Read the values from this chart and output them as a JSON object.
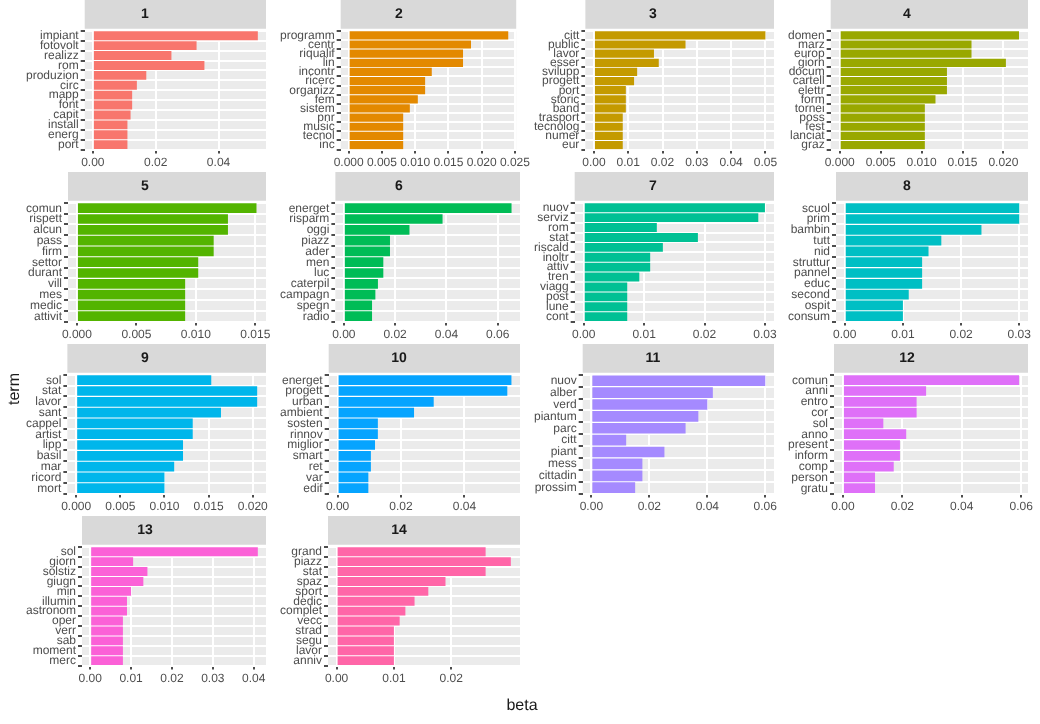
{
  "chart_data": [
    {
      "type": "bar",
      "orientation": "horizontal",
      "title": "1",
      "grid": true,
      "color": "#f8766d",
      "categories": [
        "impiant",
        "fotovolt",
        "realizz",
        "rom",
        "produzion",
        "circ",
        "mapp",
        "font",
        "capit",
        "install",
        "energ",
        "port"
      ],
      "values": [
        0.0525,
        0.033,
        0.025,
        0.0355,
        0.017,
        0.014,
        0.0125,
        0.0125,
        0.012,
        0.011,
        0.011,
        0.011
      ],
      "xlim": [
        -0.0026,
        0.0551
      ],
      "xticks": [
        {
          "value": 0,
          "label": "0.00"
        },
        {
          "value": 0.02,
          "label": "0.02"
        },
        {
          "value": 0.04,
          "label": "0.04"
        }
      ]
    },
    {
      "type": "bar",
      "orientation": "horizontal",
      "title": "2",
      "grid": true,
      "color": "#e38900",
      "categories": [
        "programm",
        "centr",
        "riqualif",
        "lin",
        "incontr",
        "ricerc",
        "organizz",
        "fem",
        "sistem",
        "pnr",
        "music",
        "tecnol",
        "inc"
      ],
      "values": [
        0.024,
        0.0184,
        0.0172,
        0.0172,
        0.0125,
        0.0115,
        0.0115,
        0.0104,
        0.0092,
        0.0082,
        0.0082,
        0.0082,
        0.0082
      ],
      "xlim": [
        -0.0012,
        0.0252
      ],
      "xticks": [
        {
          "value": 0,
          "label": "0.000"
        },
        {
          "value": 0.005,
          "label": "0.005"
        },
        {
          "value": 0.01,
          "label": "0.010"
        },
        {
          "value": 0.015,
          "label": "0.015"
        },
        {
          "value": 0.02,
          "label": "0.020"
        },
        {
          "value": 0.025,
          "label": "0.025"
        }
      ]
    },
    {
      "type": "bar",
      "orientation": "horizontal",
      "title": "3",
      "grid": true,
      "color": "#c49a00",
      "categories": [
        "citt",
        "public",
        "lavor",
        "esser",
        "svilupp",
        "progett",
        "port",
        "storic",
        "band",
        "trasport",
        "tecnolog",
        "numer",
        "eur"
      ],
      "values": [
        0.05,
        0.0267,
        0.0175,
        0.0189,
        0.0126,
        0.0117,
        0.0093,
        0.0093,
        0.0093,
        0.0084,
        0.0084,
        0.0084,
        0.0084
      ],
      "xlim": [
        -0.0025,
        0.0525
      ],
      "xticks": [
        {
          "value": 0,
          "label": "0.00"
        },
        {
          "value": 0.01,
          "label": "0.01"
        },
        {
          "value": 0.02,
          "label": "0.02"
        },
        {
          "value": 0.03,
          "label": "0.03"
        },
        {
          "value": 0.04,
          "label": "0.04"
        },
        {
          "value": 0.05,
          "label": "0.05"
        }
      ]
    },
    {
      "type": "bar",
      "orientation": "horizontal",
      "title": "4",
      "grid": true,
      "color": "#99a800",
      "categories": [
        "domen",
        "marz",
        "europ",
        "giorn",
        "docum",
        "cartell",
        "elettr",
        "form",
        "tornei",
        "poss",
        "fest",
        "lanciat",
        "graz"
      ],
      "values": [
        0.0219,
        0.0161,
        0.0161,
        0.0203,
        0.0131,
        0.0131,
        0.0131,
        0.0117,
        0.0104,
        0.0104,
        0.0104,
        0.0104,
        0.0104
      ],
      "xlim": [
        -0.0011,
        0.023
      ],
      "xticks": [
        {
          "value": 0,
          "label": "0.000"
        },
        {
          "value": 0.005,
          "label": "0.005"
        },
        {
          "value": 0.01,
          "label": "0.010"
        },
        {
          "value": 0.015,
          "label": "0.015"
        },
        {
          "value": 0.02,
          "label": "0.020"
        }
      ]
    },
    {
      "type": "bar",
      "orientation": "horizontal",
      "title": "5",
      "grid": true,
      "color": "#53b400",
      "categories": [
        "comun",
        "rispett",
        "alcun",
        "pass",
        "firm",
        "settor",
        "durant",
        "vill",
        "mes",
        "medic",
        "attivit"
      ],
      "values": [
        0.0151,
        0.0127,
        0.0127,
        0.0115,
        0.0115,
        0.0102,
        0.0102,
        0.0091,
        0.0091,
        0.0091,
        0.0091
      ],
      "xlim": [
        -0.00075,
        0.0159
      ],
      "xticks": [
        {
          "value": 0,
          "label": "0.000"
        },
        {
          "value": 0.005,
          "label": "0.005"
        },
        {
          "value": 0.01,
          "label": "0.010"
        },
        {
          "value": 0.015,
          "label": "0.015"
        }
      ]
    },
    {
      "type": "bar",
      "orientation": "horizontal",
      "title": "6",
      "grid": true,
      "color": "#00bc56",
      "categories": [
        "energet",
        "risparm",
        "oggi",
        "piazz",
        "ader",
        "men",
        "luc",
        "caterpil",
        "campagn",
        "spegn",
        "radio"
      ],
      "values": [
        0.0654,
        0.0385,
        0.0256,
        0.018,
        0.018,
        0.0154,
        0.0154,
        0.0133,
        0.0123,
        0.011,
        0.011
      ],
      "xlim": [
        -0.0033,
        0.0687
      ],
      "xticks": [
        {
          "value": 0,
          "label": "0.00"
        },
        {
          "value": 0.02,
          "label": "0.02"
        },
        {
          "value": 0.04,
          "label": "0.04"
        },
        {
          "value": 0.06,
          "label": "0.06"
        }
      ]
    },
    {
      "type": "bar",
      "orientation": "horizontal",
      "title": "7",
      "grid": true,
      "color": "#00c094",
      "categories": [
        "nuov",
        "serviz",
        "rom",
        "stat",
        "riscald",
        "inoltr",
        "attiv",
        "tren",
        "viagg",
        "post",
        "lune",
        "cont"
      ],
      "values": [
        0.03,
        0.0289,
        0.0121,
        0.0189,
        0.0131,
        0.011,
        0.011,
        0.0092,
        0.0072,
        0.0072,
        0.0072,
        0.0072
      ],
      "xlim": [
        -0.0015,
        0.0315
      ],
      "xticks": [
        {
          "value": 0,
          "label": "0.00"
        },
        {
          "value": 0.01,
          "label": "0.01"
        },
        {
          "value": 0.02,
          "label": "0.02"
        },
        {
          "value": 0.03,
          "label": "0.03"
        }
      ]
    },
    {
      "type": "bar",
      "orientation": "horizontal",
      "title": "8",
      "grid": true,
      "color": "#00bfc4",
      "categories": [
        "scuol",
        "prim",
        "bambin",
        "tutt",
        "nid",
        "struttur",
        "pannel",
        "educ",
        "second",
        "ospit",
        "consum"
      ],
      "values": [
        0.03,
        0.03,
        0.0235,
        0.0166,
        0.0144,
        0.0133,
        0.0133,
        0.0133,
        0.011,
        0.01,
        0.01
      ],
      "xlim": [
        -0.0015,
        0.0315
      ],
      "xticks": [
        {
          "value": 0,
          "label": "0.00"
        },
        {
          "value": 0.01,
          "label": "0.01"
        },
        {
          "value": 0.02,
          "label": "0.02"
        },
        {
          "value": 0.03,
          "label": "0.03"
        }
      ]
    },
    {
      "type": "bar",
      "orientation": "horizontal",
      "title": "9",
      "ylabel": "term",
      "grid": true,
      "color": "#00b6eb",
      "categories": [
        "sol",
        "stat",
        "lavor",
        "sant",
        "cappel",
        "artist",
        "lipp",
        "basil",
        "mar",
        "ricord",
        "mort"
      ],
      "values": [
        0.0153,
        0.0205,
        0.0205,
        0.0164,
        0.0132,
        0.0132,
        0.0121,
        0.0121,
        0.0111,
        0.01,
        0.01
      ],
      "xlim": [
        -0.001,
        0.0215
      ],
      "xticks": [
        {
          "value": 0,
          "label": "0.000"
        },
        {
          "value": 0.005,
          "label": "0.005"
        },
        {
          "value": 0.01,
          "label": "0.010"
        },
        {
          "value": 0.015,
          "label": "0.015"
        },
        {
          "value": 0.02,
          "label": "0.020"
        }
      ]
    },
    {
      "type": "bar",
      "orientation": "horizontal",
      "title": "10",
      "grid": true,
      "color": "#06a4ff",
      "categories": [
        "energet",
        "progett",
        "urban",
        "ambient",
        "sosten",
        "rinnov",
        "miglior",
        "smart",
        "ret",
        "var",
        "edif"
      ],
      "values": [
        0.0548,
        0.0535,
        0.0303,
        0.0241,
        0.0127,
        0.0127,
        0.0118,
        0.0105,
        0.0105,
        0.0097,
        0.0097
      ],
      "xlim": [
        -0.0028,
        0.0575
      ],
      "xticks": [
        {
          "value": 0,
          "label": "0.00"
        },
        {
          "value": 0.02,
          "label": "0.02"
        },
        {
          "value": 0.04,
          "label": "0.04"
        }
      ]
    },
    {
      "type": "bar",
      "orientation": "horizontal",
      "title": "11",
      "grid": true,
      "color": "#a58aff",
      "categories": [
        "nuov",
        "alber",
        "verd",
        "piantum",
        "parc",
        "citt",
        "piant",
        "mess",
        "cittadin",
        "prossim"
      ],
      "values": [
        0.06,
        0.0419,
        0.04,
        0.0369,
        0.0325,
        0.012,
        0.0252,
        0.0176,
        0.0176,
        0.0151
      ],
      "xlim": [
        -0.003,
        0.063
      ],
      "xticks": [
        {
          "value": 0,
          "label": "0.00"
        },
        {
          "value": 0.02,
          "label": "0.02"
        },
        {
          "value": 0.04,
          "label": "0.04"
        },
        {
          "value": 0.06,
          "label": "0.06"
        }
      ]
    },
    {
      "type": "bar",
      "orientation": "horizontal",
      "title": "12",
      "grid": true,
      "color": "#df70f8",
      "categories": [
        "comun",
        "anni",
        "entro",
        "cor",
        "sol",
        "anno",
        "present",
        "inform",
        "comp",
        "person",
        "gratu"
      ],
      "values": [
        0.0593,
        0.028,
        0.0248,
        0.0248,
        0.0136,
        0.0213,
        0.0192,
        0.0192,
        0.0171,
        0.0108,
        0.0108
      ],
      "xlim": [
        -0.003,
        0.0623
      ],
      "xticks": [
        {
          "value": 0,
          "label": "0.00"
        },
        {
          "value": 0.02,
          "label": "0.02"
        },
        {
          "value": 0.04,
          "label": "0.04"
        },
        {
          "value": 0.06,
          "label": "0.06"
        }
      ]
    },
    {
      "type": "bar",
      "orientation": "horizontal",
      "title": "13",
      "grid": true,
      "color": "#fb61d7",
      "categories": [
        "sol",
        "giorn",
        "solstiz",
        "giugn",
        "min",
        "illumin",
        "astronom",
        "oper",
        "verr",
        "sab",
        "moment",
        "merc"
      ],
      "values": [
        0.041,
        0.0105,
        0.014,
        0.013,
        0.01,
        0.009,
        0.009,
        0.008,
        0.008,
        0.008,
        0.008,
        0.008
      ],
      "xlim": [
        -0.002,
        0.043
      ],
      "xticks": [
        {
          "value": 0,
          "label": "0.00"
        },
        {
          "value": 0.01,
          "label": "0.01"
        },
        {
          "value": 0.02,
          "label": "0.02"
        },
        {
          "value": 0.03,
          "label": "0.03"
        },
        {
          "value": 0.04,
          "label": "0.04"
        }
      ]
    },
    {
      "type": "bar",
      "orientation": "horizontal",
      "title": "14",
      "xlabel": "beta",
      "grid": true,
      "color": "#ff66a8",
      "categories": [
        "grand",
        "piazz",
        "stat",
        "spaz",
        "sport",
        "dedic",
        "complet",
        "vecc",
        "strad",
        "segu",
        "lavor",
        "anniv"
      ],
      "values": [
        0.026,
        0.0304,
        0.026,
        0.019,
        0.016,
        0.0136,
        0.012,
        0.011,
        0.01,
        0.01,
        0.01,
        0.01
      ],
      "xlim": [
        -0.0015,
        0.032
      ],
      "xticks": [
        {
          "value": 0,
          "label": "0.00"
        },
        {
          "value": 0.01,
          "label": "0.01"
        },
        {
          "value": 0.02,
          "label": "0.02"
        }
      ]
    }
  ]
}
